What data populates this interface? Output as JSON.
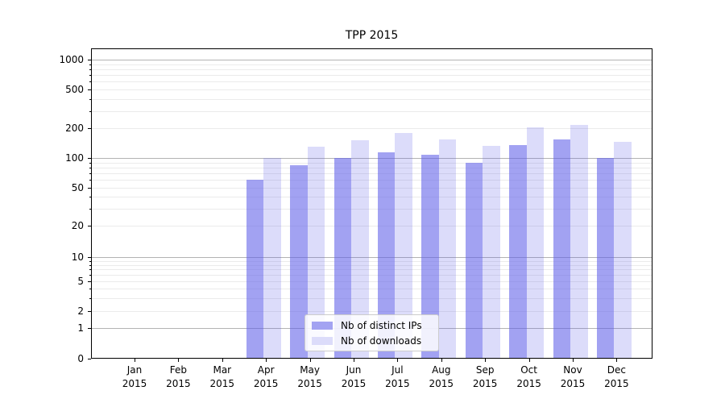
{
  "title": "TPP 2015",
  "colors": {
    "bar_distinct_ips": "#a3a3f2",
    "bar_downloads": "#dcdcfa",
    "bar_base_rgba_dark": "rgba(94,94,232,0.58)",
    "bar_base_rgba_light": "rgba(94,94,232,0.22)",
    "grid_major": "#b3b3b3",
    "grid_minor": "#ebebeb",
    "axis": "#000000"
  },
  "legend": {
    "items": [
      {
        "label": "Nb of distinct IPs",
        "swatch": "dark"
      },
      {
        "label": "Nb of downloads",
        "swatch": "light"
      }
    ]
  },
  "chart_data": {
    "type": "bar",
    "title": "TPP 2015",
    "xlabel": "",
    "ylabel": "",
    "yscale": "symlog",
    "grid": true,
    "legend_position": "lower-center",
    "categories": [
      "Jan 2015",
      "Feb 2015",
      "Mar 2015",
      "Apr 2015",
      "May 2015",
      "Jun 2015",
      "Jul 2015",
      "Aug 2015",
      "Sep 2015",
      "Oct 2015",
      "Nov 2015",
      "Dec 2015"
    ],
    "yticks": [
      0,
      1,
      2,
      5,
      10,
      20,
      50,
      100,
      200,
      500,
      1000
    ],
    "ylim": [
      0,
      1300
    ],
    "series": [
      {
        "name": "Nb of distinct IPs",
        "color": "#a3a3f2",
        "values": [
          0,
          0,
          0,
          60,
          85,
          100,
          115,
          108,
          90,
          135,
          155,
          100
        ]
      },
      {
        "name": "Nb of downloads",
        "color": "#dcdcfa",
        "values": [
          0,
          0,
          0,
          100,
          130,
          150,
          180,
          155,
          133,
          205,
          218,
          145
        ]
      }
    ]
  }
}
